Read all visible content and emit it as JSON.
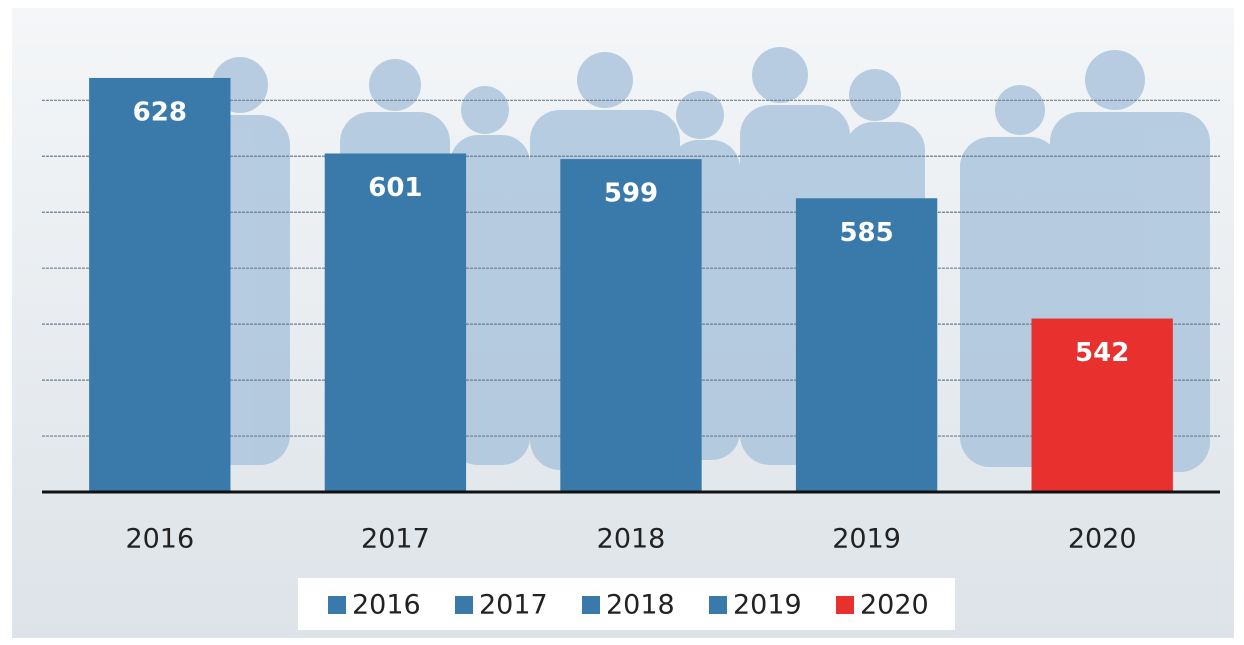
{
  "chart_data": {
    "type": "bar",
    "categories": [
      "2016",
      "2017",
      "2018",
      "2019",
      "2020"
    ],
    "values": [
      628,
      601,
      599,
      585,
      542
    ],
    "colors": [
      "#3a7aab",
      "#3a7aab",
      "#3a7aab",
      "#3a7aab",
      "#e8302f"
    ],
    "ylim": [
      480,
      648
    ],
    "yticks": [
      500,
      520,
      540,
      560,
      580,
      600,
      620
    ],
    "grid": true,
    "legend": "bottom"
  }
}
